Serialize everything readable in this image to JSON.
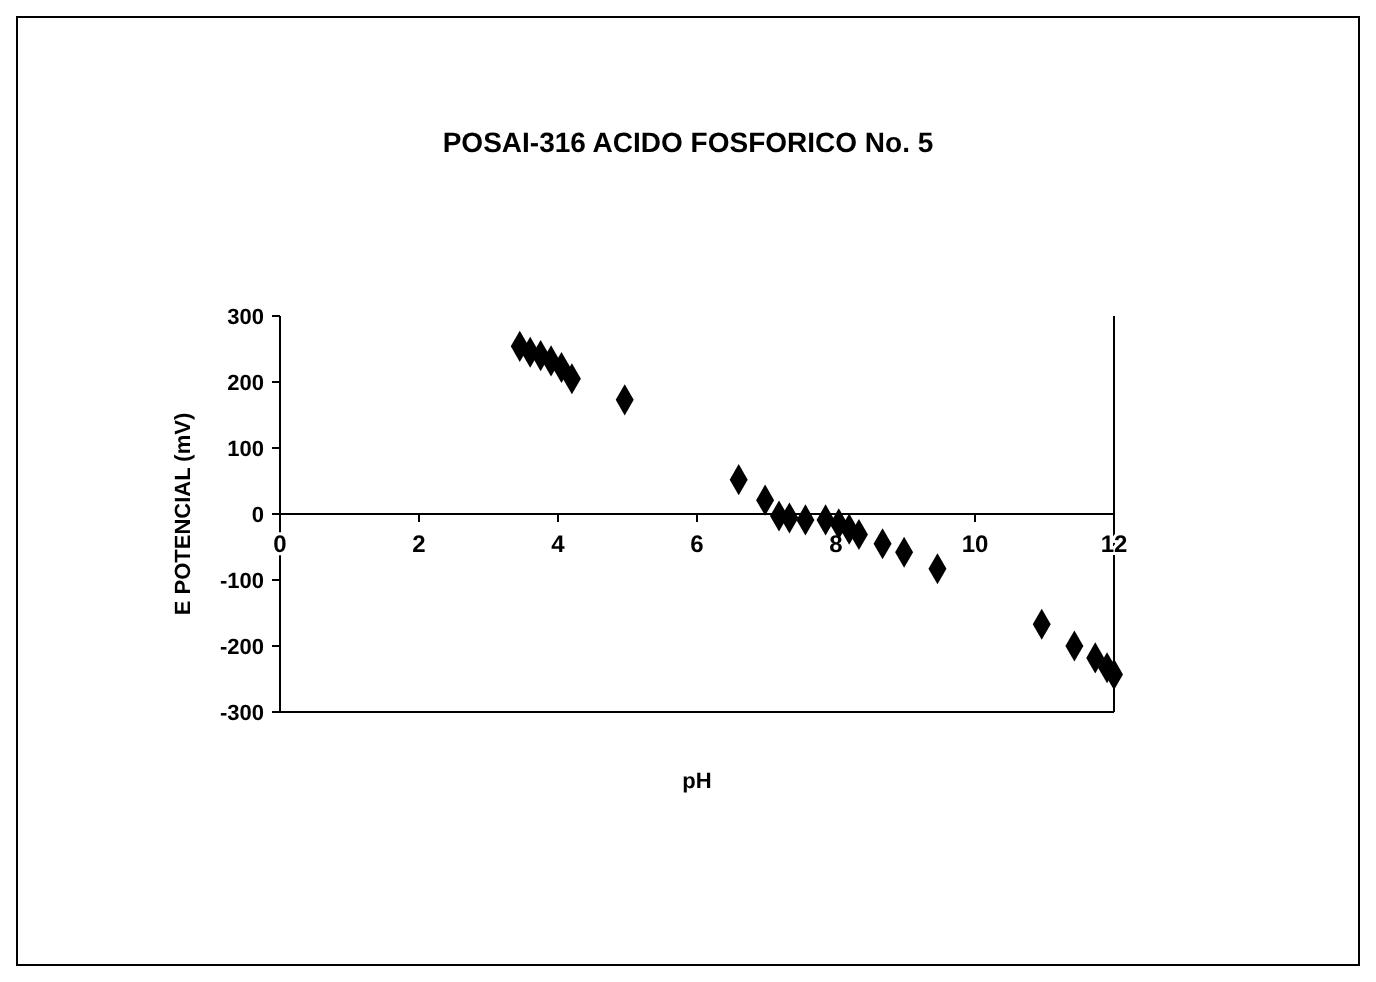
{
  "chart_data": {
    "type": "scatter",
    "title": "POSAI-316  ACIDO FOSFORICO No. 5",
    "xlabel": "pH",
    "ylabel": "E POTENCIAL (mV)",
    "x": [
      3.45,
      3.6,
      3.75,
      3.9,
      4.05,
      4.2,
      4.96,
      6.6,
      6.98,
      7.18,
      7.33,
      7.56,
      7.85,
      8.04,
      8.19,
      8.33,
      8.67,
      8.98,
      9.46,
      10.96,
      11.43,
      11.73,
      11.9,
      12.0
    ],
    "series": [
      {
        "color": "#000000",
        "values": [
          254,
          245,
          240,
          232,
          222,
          205,
          173,
          52,
          21,
          -3,
          -6,
          -9,
          -9,
          -15,
          -23,
          -31,
          -45,
          -58,
          -83,
          -167,
          -200,
          -218,
          -233,
          -243
        ]
      }
    ],
    "xlim": [
      0,
      12
    ],
    "xticks": [
      0,
      2,
      4,
      6,
      8,
      10,
      12
    ],
    "ylim": [
      -300,
      300
    ],
    "yticks": [
      -300,
      -200,
      -100,
      0,
      100,
      200,
      300
    ],
    "marker": "diamond"
  }
}
